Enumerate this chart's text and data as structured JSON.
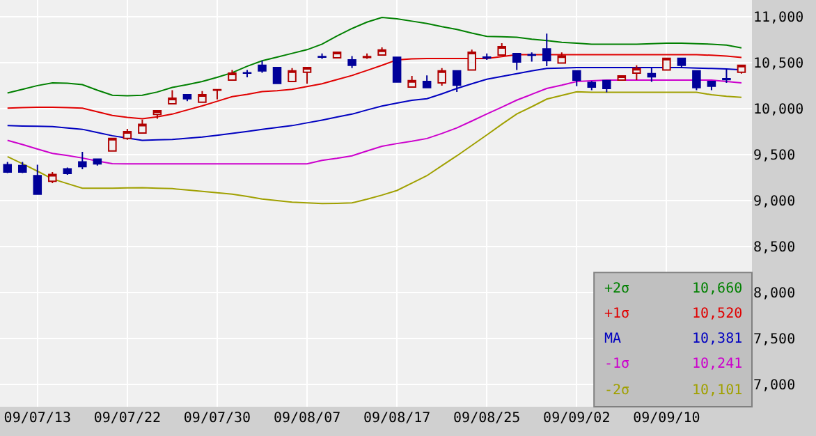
{
  "chart_data": {
    "type": "candlestick",
    "categories": [
      null,
      null,
      "09/07/13",
      null,
      null,
      null,
      null,
      null,
      "09/07/22",
      null,
      null,
      null,
      null,
      null,
      "09/07/30",
      null,
      null,
      null,
      null,
      null,
      "09/08/07",
      null,
      null,
      null,
      null,
      null,
      "09/08/17",
      null,
      null,
      null,
      null,
      null,
      "09/08/25",
      null,
      null,
      null,
      null,
      null,
      "09/09/02",
      null,
      null,
      null,
      null,
      null,
      "09/09/10",
      null,
      null,
      null,
      null,
      null
    ],
    "ohlc": [
      [
        9390,
        9420,
        9300,
        9310
      ],
      [
        9380,
        9420,
        9300,
        9310
      ],
      [
        9270,
        9390,
        9070,
        9070
      ],
      [
        9210,
        9310,
        9190,
        9285
      ],
      [
        9345,
        9360,
        9280,
        9295
      ],
      [
        9420,
        9530,
        9340,
        9370
      ],
      [
        9450,
        9450,
        9380,
        9400
      ],
      [
        9540,
        9675,
        9540,
        9675
      ],
      [
        9675,
        9780,
        9660,
        9750
      ],
      [
        9735,
        9880,
        9735,
        9830
      ],
      [
        9936,
        9977,
        9890,
        9977
      ],
      [
        10053,
        10200,
        10053,
        10113
      ],
      [
        10150,
        10150,
        10080,
        10107
      ],
      [
        10070,
        10190,
        10070,
        10150
      ],
      [
        10200,
        10205,
        10100,
        10205
      ],
      [
        10310,
        10420,
        10310,
        10385
      ],
      [
        10390,
        10420,
        10340,
        10385
      ],
      [
        10470,
        10520,
        10390,
        10410
      ],
      [
        10446,
        10446,
        10274,
        10274
      ],
      [
        10295,
        10440,
        10295,
        10410
      ],
      [
        10395,
        10446,
        10270,
        10446
      ],
      [
        10565,
        10600,
        10540,
        10560
      ],
      [
        10552,
        10613,
        10552,
        10613
      ],
      [
        10530,
        10570,
        10440,
        10470
      ],
      [
        10555,
        10600,
        10540,
        10565
      ],
      [
        10582,
        10665,
        10582,
        10637
      ],
      [
        10557,
        10557,
        10289,
        10289
      ],
      [
        10234,
        10355,
        10234,
        10304
      ],
      [
        10295,
        10360,
        10229,
        10229
      ],
      [
        10280,
        10440,
        10250,
        10410
      ],
      [
        10410,
        10410,
        10180,
        10254
      ],
      [
        10420,
        10640,
        10420,
        10613
      ],
      [
        10560,
        10600,
        10530,
        10550
      ],
      [
        10582,
        10710,
        10582,
        10673
      ],
      [
        10597,
        10597,
        10420,
        10507
      ],
      [
        10585,
        10610,
        10510,
        10580
      ],
      [
        10648,
        10814,
        10461,
        10522
      ],
      [
        10496,
        10610,
        10496,
        10572
      ],
      [
        10410,
        10410,
        10244,
        10310
      ],
      [
        10284,
        10300,
        10200,
        10234
      ],
      [
        10304,
        10304,
        10178,
        10219
      ],
      [
        10310,
        10355,
        10310,
        10355
      ],
      [
        10385,
        10470,
        10310,
        10436
      ],
      [
        10380,
        10440,
        10290,
        10345
      ],
      [
        10420,
        10546,
        10420,
        10546
      ],
      [
        10546,
        10546,
        10440,
        10470
      ],
      [
        10410,
        10410,
        10200,
        10229
      ],
      [
        10295,
        10300,
        10200,
        10244
      ],
      [
        10325,
        10430,
        10280,
        10315
      ],
      [
        10395,
        10470,
        10380,
        10470
      ]
    ],
    "colors": [
      "#000099",
      "#000099",
      "#000099",
      "#b00000",
      "#000099",
      "#000099",
      "#000099",
      "#b00000",
      "#b00000",
      "#b00000",
      "#b00000",
      "#b00000",
      "#000099",
      "#b00000",
      "#b00000",
      "#b00000",
      "#000099",
      "#000099",
      "#000099",
      "#b00000",
      "#b00000",
      "#000099",
      "#b00000",
      "#000099",
      "#b00000",
      "#b00000",
      "#000099",
      "#b00000",
      "#000099",
      "#b00000",
      "#000099",
      "#b00000",
      "#000099",
      "#b00000",
      "#000099",
      "#000099",
      "#000099",
      "#b00000",
      "#000099",
      "#000099",
      "#000099",
      "#b00000",
      "#b00000",
      "#000099",
      "#b00000",
      "#000099",
      "#000099",
      "#000099",
      "#000099",
      "#b00000"
    ],
    "series": [
      {
        "name": "+2σ",
        "type": "line",
        "color": "#008000",
        "values": [
          10170,
          10210,
          10250,
          10280,
          10275,
          10260,
          10200,
          10145,
          10140,
          10145,
          10180,
          10230,
          10260,
          10295,
          10340,
          10390,
          10460,
          10520,
          10560,
          10600,
          10640,
          10700,
          10790,
          10870,
          10940,
          10990,
          10975,
          10950,
          10925,
          10890,
          10860,
          10820,
          10785,
          10780,
          10775,
          10755,
          10740,
          10720,
          10710,
          10700,
          10700,
          10700,
          10700,
          10705,
          10710,
          10710,
          10705,
          10700,
          10690,
          10660
        ]
      },
      {
        "name": "+1σ",
        "type": "line",
        "color": "#e00000",
        "values": [
          10005,
          10010,
          10015,
          10015,
          10010,
          10005,
          9965,
          9925,
          9905,
          9890,
          9910,
          9940,
          9985,
          10030,
          10080,
          10130,
          10155,
          10185,
          10195,
          10210,
          10240,
          10270,
          10315,
          10360,
          10415,
          10470,
          10530,
          10540,
          10545,
          10545,
          10545,
          10545,
          10545,
          10565,
          10585,
          10585,
          10585,
          10585,
          10585,
          10585,
          10585,
          10585,
          10585,
          10585,
          10585,
          10585,
          10585,
          10580,
          10570,
          10555
        ]
      },
      {
        "name": "MA",
        "type": "line",
        "color": "#0000c0",
        "values": [
          9815,
          9810,
          9808,
          9805,
          9790,
          9775,
          9740,
          9705,
          9680,
          9655,
          9660,
          9665,
          9678,
          9690,
          9710,
          9730,
          9752,
          9775,
          9795,
          9815,
          9845,
          9875,
          9908,
          9940,
          9985,
          10027,
          10060,
          10090,
          10107,
          10160,
          10219,
          10270,
          10319,
          10350,
          10380,
          10410,
          10436,
          10441,
          10446,
          10446,
          10446,
          10446,
          10446,
          10446,
          10446,
          10446,
          10440,
          10436,
          10431,
          10421
        ]
      },
      {
        "name": "-1σ",
        "type": "line",
        "color": "#cc00cc",
        "values": [
          9655,
          9610,
          9560,
          9513,
          9490,
          9463,
          9430,
          9402,
          9400,
          9400,
          9400,
          9400,
          9400,
          9400,
          9400,
          9400,
          9400,
          9400,
          9400,
          9400,
          9400,
          9437,
          9460,
          9487,
          9540,
          9590,
          9620,
          9645,
          9675,
          9730,
          9790,
          9865,
          9941,
          10015,
          10092,
          10155,
          10219,
          10255,
          10295,
          10303,
          10310,
          10310,
          10310,
          10310,
          10310,
          10310,
          10310,
          10310,
          10295,
          10280
        ]
      },
      {
        "name": "-2σ",
        "type": "line",
        "color": "#a0a000",
        "values": [
          9478,
          9400,
          9320,
          9236,
          9185,
          9135,
          9135,
          9135,
          9138,
          9140,
          9135,
          9130,
          9115,
          9100,
          9085,
          9070,
          9045,
          9018,
          9000,
          8983,
          8975,
          8968,
          8970,
          8975,
          9015,
          9060,
          9110,
          9190,
          9271,
          9380,
          9487,
          9600,
          9714,
          9830,
          9941,
          10020,
          10103,
          10143,
          10183,
          10178,
          10178,
          10178,
          10178,
          10178,
          10178,
          10178,
          10178,
          10150,
          10133,
          10123
        ]
      }
    ],
    "annotations": [
      "10,660",
      "10,520",
      "10,381",
      "10,241",
      "10,101"
    ],
    "ylim": [
      6760,
      11180
    ],
    "yticks": [
      {
        "value": 7000,
        "label": "7,000"
      },
      {
        "value": 7500,
        "label": "7,500"
      },
      {
        "value": 8000,
        "label": "8,000"
      },
      {
        "value": 8500,
        "label": "8,500"
      },
      {
        "value": 9000,
        "label": "9,000"
      },
      {
        "value": 9500,
        "label": "9,500"
      },
      {
        "value": 10000,
        "label": "10,000"
      },
      {
        "value": 10500,
        "label": "10,500"
      },
      {
        "value": 11000,
        "label": "11,000"
      }
    ],
    "grid": true,
    "legend": "bottom right",
    "marker": "none",
    "line_style": "solid"
  }
}
